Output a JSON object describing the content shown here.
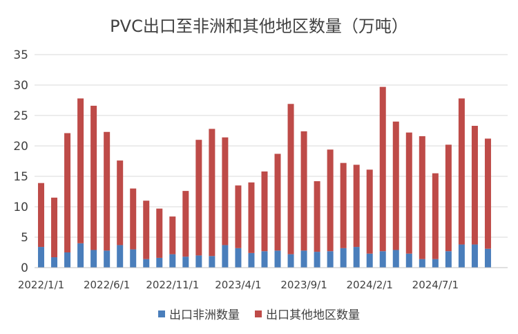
{
  "chart_data": {
    "type": "bar",
    "stacked": true,
    "title": "PVC出口至非洲和其他地区数量（万吨）",
    "xlabel": "",
    "ylabel": "",
    "ylim": [
      0,
      35
    ],
    "yticks": [
      0,
      5,
      10,
      15,
      20,
      25,
      30,
      35
    ],
    "grid": true,
    "legend_position": "bottom",
    "x_tick_labels": [
      "2022/1/1",
      "2022/6/1",
      "2022/11/1",
      "2023/4/1",
      "2023/9/1",
      "2024/2/1",
      "2024/7/1"
    ],
    "categories": [
      "2022/1",
      "2022/2",
      "2022/3",
      "2022/4",
      "2022/5",
      "2022/6",
      "2022/7",
      "2022/8",
      "2022/9",
      "2022/10",
      "2022/11",
      "2022/12",
      "2023/1",
      "2023/2",
      "2023/3",
      "2023/4",
      "2023/5",
      "2023/6",
      "2023/7",
      "2023/8",
      "2023/9",
      "2023/10",
      "2023/11",
      "2023/12",
      "2024/1",
      "2024/2",
      "2024/3",
      "2024/4",
      "2024/5",
      "2024/6",
      "2024/7",
      "2024/8",
      "2024/9",
      "2024/10",
      "2024/11",
      "2024/12"
    ],
    "series": [
      {
        "name": "出口非洲数量",
        "color": "#4a7ebb",
        "values": [
          3.4,
          1.7,
          2.5,
          4.0,
          2.9,
          2.8,
          3.7,
          3.0,
          1.4,
          1.6,
          2.2,
          1.8,
          2.0,
          1.9,
          3.7,
          3.2,
          2.4,
          2.7,
          2.8,
          2.2,
          2.8,
          2.6,
          2.7,
          3.2,
          3.4,
          2.3,
          2.7,
          2.9,
          2.3,
          1.4,
          1.4,
          2.7,
          3.8,
          3.8,
          3.1,
          0
        ]
      },
      {
        "name": "出口其他地区数量",
        "color": "#be4b48",
        "values": [
          10.5,
          9.8,
          19.6,
          23.8,
          23.7,
          19.5,
          13.9,
          10.0,
          9.6,
          8.1,
          6.2,
          10.8,
          19.0,
          20.9,
          17.7,
          10.3,
          11.6,
          13.1,
          15.9,
          24.7,
          19.6,
          11.6,
          16.7,
          14.0,
          13.5,
          13.8,
          27.0,
          21.1,
          19.9,
          20.2,
          14.1,
          17.5,
          24.0,
          19.5,
          18.1,
          0
        ]
      }
    ]
  }
}
